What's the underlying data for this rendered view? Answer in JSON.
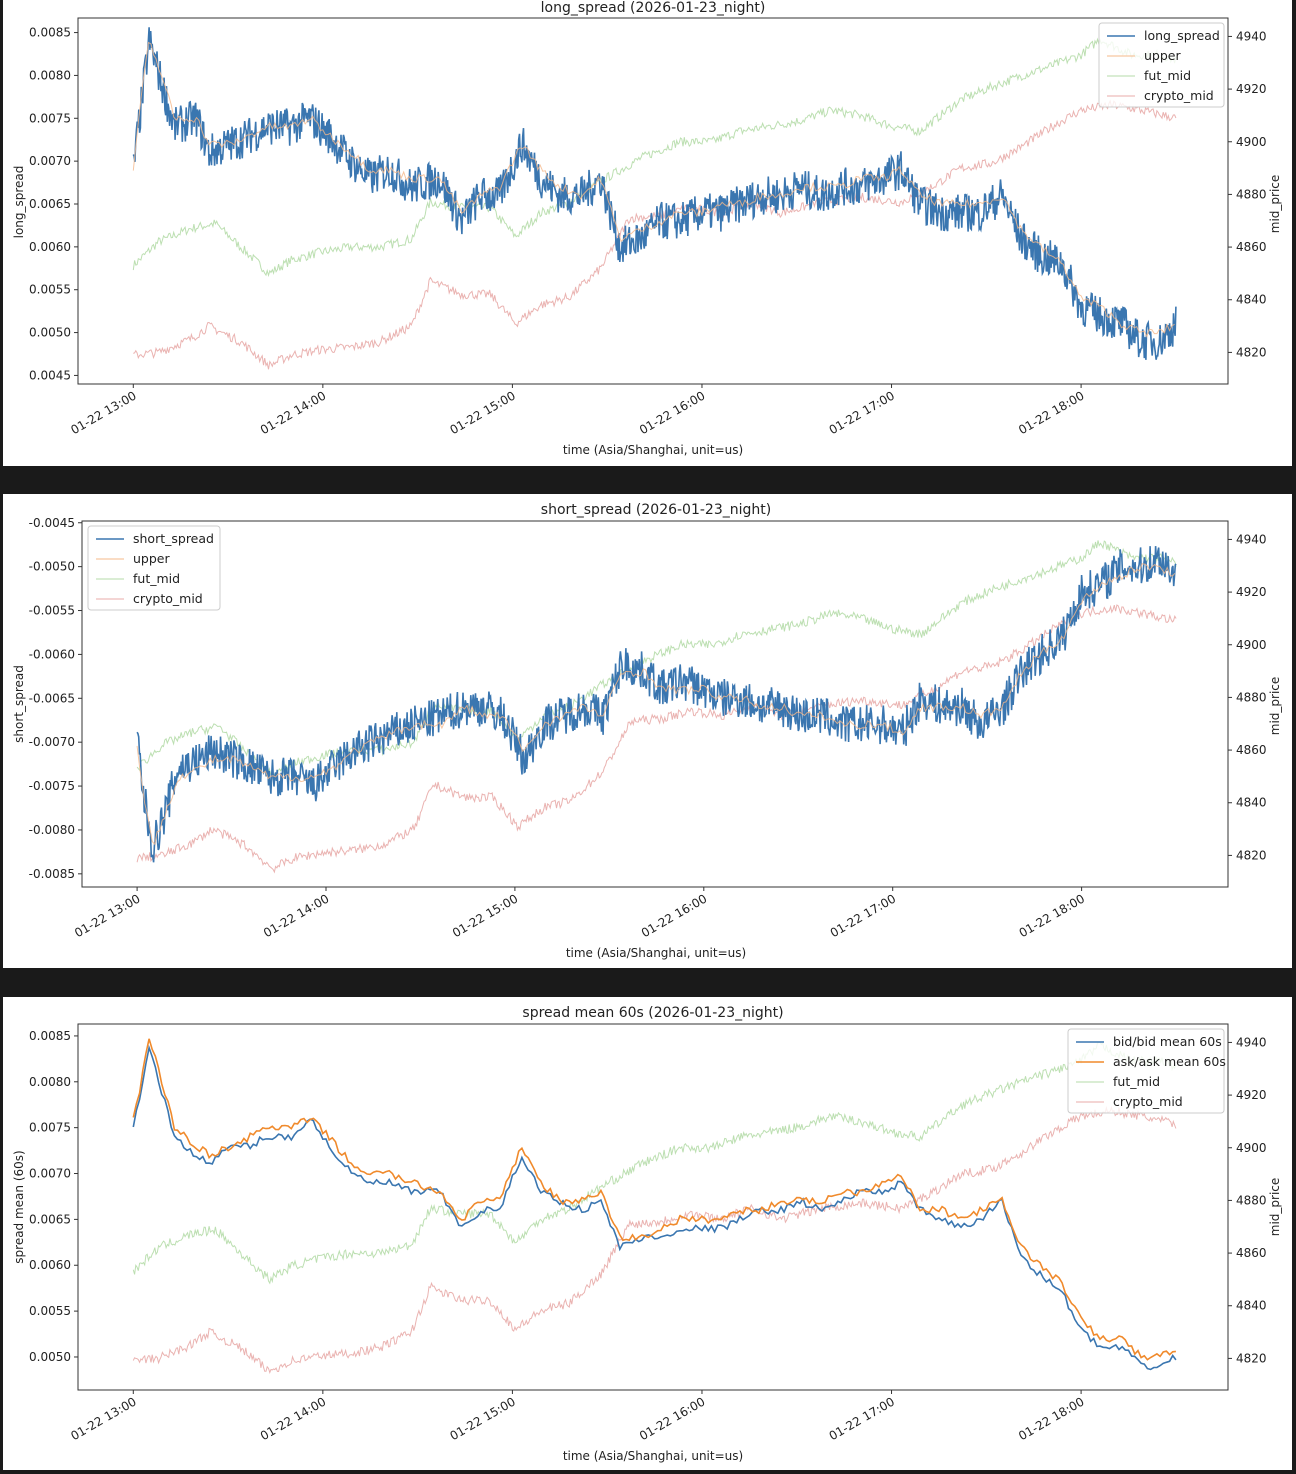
{
  "chart_data": [
    {
      "type": "line",
      "title": "long_spread (2026-01-23_night)",
      "xlabel": "time (Asia/Shanghai, unit=us)",
      "ylabel": "long_spread",
      "y2label": "mid_price",
      "ylim": [
        0.0044,
        0.00867
      ],
      "y2lim": [
        4808,
        4947
      ],
      "yticks": [
        "0.0045",
        "0.0050",
        "0.0055",
        "0.0060",
        "0.0065",
        "0.0070",
        "0.0075",
        "0.0080",
        "0.0085"
      ],
      "y2ticks": [
        "4820",
        "4840",
        "4860",
        "4880",
        "4900",
        "4920",
        "4940"
      ],
      "xticks": [
        "01-22 13:00",
        "01-22 14:00",
        "01-22 15:00",
        "01-22 16:00",
        "01-22 17:00",
        "01-22 18:00"
      ],
      "xlim_minutes_from_1300": [
        -17.5,
        346.5
      ],
      "legend": {
        "position": "upper right",
        "entries": [
          "long_spread",
          "upper",
          "fut_mid",
          "crypto_mid"
        ]
      },
      "x_minutes": [
        0,
        2,
        5,
        9,
        13,
        20,
        24,
        31,
        37,
        42,
        50,
        56,
        62,
        69,
        75,
        81,
        88,
        97,
        104,
        110,
        116,
        123,
        129,
        135,
        142,
        148,
        154,
        161,
        167,
        173,
        180,
        186,
        192,
        199,
        205,
        211,
        218,
        224,
        230,
        237,
        243,
        249,
        256,
        262,
        268,
        275,
        281,
        287,
        294,
        300,
        306,
        313,
        319,
        325,
        330
      ],
      "series": [
        {
          "name": "long_spread",
          "axis": "left",
          "color": "#3a76b0",
          "values": [
            0.0069,
            0.0075,
            0.0084,
            0.0079,
            0.0074,
            0.0075,
            0.0071,
            0.0072,
            0.0073,
            0.0074,
            0.0074,
            0.0075,
            0.0073,
            0.007,
            0.0068,
            0.0069,
            0.0067,
            0.0068,
            0.0063,
            0.0066,
            0.0066,
            0.0072,
            0.0068,
            0.0066,
            0.0066,
            0.0068,
            0.006,
            0.0061,
            0.0063,
            0.0063,
            0.0064,
            0.0064,
            0.0065,
            0.0066,
            0.0066,
            0.0067,
            0.0066,
            0.0067,
            0.0067,
            0.0068,
            0.0069,
            0.0065,
            0.0064,
            0.0064,
            0.0064,
            0.0066,
            0.0061,
            0.0059,
            0.0058,
            0.0053,
            0.0052,
            0.0051,
            0.0049,
            0.0049,
            0.0051
          ]
        },
        {
          "name": "upper",
          "axis": "left",
          "color": "#f5b88a",
          "values": [
            0.0069,
            0.0076,
            0.0084,
            0.008,
            0.0075,
            0.0075,
            0.0072,
            0.0072,
            0.0073,
            0.0074,
            0.0074,
            0.0075,
            0.0073,
            0.0071,
            0.0069,
            0.0069,
            0.0068,
            0.0068,
            0.0064,
            0.0066,
            0.0067,
            0.0072,
            0.0069,
            0.0067,
            0.0066,
            0.0068,
            0.0061,
            0.0062,
            0.0063,
            0.0064,
            0.0064,
            0.0065,
            0.0065,
            0.0066,
            0.0066,
            0.0067,
            0.0067,
            0.0067,
            0.0068,
            0.0068,
            0.0069,
            0.0066,
            0.0065,
            0.0065,
            0.0065,
            0.0066,
            0.0062,
            0.006,
            0.0058,
            0.0054,
            0.0053,
            0.0051,
            0.005,
            0.005,
            0.0051
          ]
        }
      ],
      "mid_series": "shared_mid"
    },
    {
      "type": "line",
      "title": "short_spread (2026-01-23_night)",
      "xlabel": "time (Asia/Shanghai, unit=us)",
      "ylabel": "short_spread",
      "y2label": "mid_price",
      "ylim": [
        -0.00865,
        -0.00448
      ],
      "y2lim": [
        4808,
        4947
      ],
      "yticks": [
        "-0.0085",
        "-0.0080",
        "-0.0075",
        "-0.0070",
        "-0.0065",
        "-0.0060",
        "-0.0055",
        "-0.0050",
        "-0.0045"
      ],
      "y2ticks": [
        "4820",
        "4840",
        "4860",
        "4880",
        "4900",
        "4920",
        "4940"
      ],
      "xticks": [
        "01-22 13:00",
        "01-22 14:00",
        "01-22 15:00",
        "01-22 16:00",
        "01-22 17:00",
        "01-22 18:00"
      ],
      "xlim_minutes_from_1300": [
        -17.5,
        346.5
      ],
      "legend": {
        "position": "upper left",
        "entries": [
          "short_spread",
          "upper",
          "fut_mid",
          "crypto_mid"
        ]
      },
      "x_minutes": [
        0,
        2,
        5,
        9,
        13,
        20,
        24,
        31,
        37,
        42,
        50,
        56,
        62,
        69,
        75,
        81,
        88,
        97,
        104,
        110,
        116,
        123,
        129,
        135,
        142,
        148,
        154,
        161,
        167,
        173,
        180,
        186,
        192,
        199,
        205,
        211,
        218,
        224,
        230,
        237,
        243,
        249,
        256,
        262,
        268,
        275,
        281,
        287,
        294,
        300,
        306,
        313,
        319,
        325,
        330
      ],
      "series": [
        {
          "name": "short_spread",
          "axis": "left",
          "color": "#3a76b0",
          "values": [
            -0.0069,
            -0.0076,
            -0.0082,
            -0.0078,
            -0.0073,
            -0.0072,
            -0.0071,
            -0.0072,
            -0.0073,
            -0.0074,
            -0.0074,
            -0.0075,
            -0.0073,
            -0.0071,
            -0.007,
            -0.0069,
            -0.0068,
            -0.0067,
            -0.0066,
            -0.0066,
            -0.0067,
            -0.0072,
            -0.0068,
            -0.0067,
            -0.0066,
            -0.0067,
            -0.0061,
            -0.0062,
            -0.0064,
            -0.0063,
            -0.0064,
            -0.0065,
            -0.0065,
            -0.0066,
            -0.0066,
            -0.0067,
            -0.0067,
            -0.0068,
            -0.0068,
            -0.0068,
            -0.0069,
            -0.0065,
            -0.0066,
            -0.0066,
            -0.0068,
            -0.0066,
            -0.0062,
            -0.006,
            -0.0058,
            -0.0053,
            -0.0052,
            -0.005,
            -0.005,
            -0.0049,
            -0.0051
          ]
        },
        {
          "name": "upper",
          "axis": "left",
          "color": "#f5b88a",
          "values": [
            -0.007,
            -0.0076,
            -0.0082,
            -0.0078,
            -0.0074,
            -0.0073,
            -0.0072,
            -0.0072,
            -0.0073,
            -0.0074,
            -0.0074,
            -0.0074,
            -0.0073,
            -0.0071,
            -0.007,
            -0.0069,
            -0.0068,
            -0.0068,
            -0.0066,
            -0.0067,
            -0.0067,
            -0.0071,
            -0.0068,
            -0.0067,
            -0.0066,
            -0.0067,
            -0.0062,
            -0.0062,
            -0.0064,
            -0.0064,
            -0.0064,
            -0.0065,
            -0.0065,
            -0.0066,
            -0.0066,
            -0.0067,
            -0.0067,
            -0.0068,
            -0.0068,
            -0.0068,
            -0.0069,
            -0.0066,
            -0.0066,
            -0.0066,
            -0.0067,
            -0.0066,
            -0.0062,
            -0.006,
            -0.0058,
            -0.0054,
            -0.0052,
            -0.0051,
            -0.005,
            -0.005,
            -0.0051
          ]
        }
      ],
      "mid_series": "shared_mid"
    },
    {
      "type": "line",
      "title": "spread mean 60s (2026-01-23_night)",
      "xlabel": "time (Asia/Shanghai, unit=us)",
      "ylabel": "spread mean (60s)",
      "y2label": "mid_price",
      "ylim": [
        0.00464,
        0.00863
      ],
      "y2lim": [
        4808,
        4947
      ],
      "yticks": [
        "0.0050",
        "0.0055",
        "0.0060",
        "0.0065",
        "0.0070",
        "0.0075",
        "0.0080",
        "0.0085"
      ],
      "y2ticks": [
        "4820",
        "4840",
        "4860",
        "4880",
        "4900",
        "4920",
        "4940"
      ],
      "xticks": [
        "01-22 13:00",
        "01-22 14:00",
        "01-22 15:00",
        "01-22 16:00",
        "01-22 17:00",
        "01-22 18:00"
      ],
      "xlim_minutes_from_1300": [
        -17.5,
        346.5
      ],
      "legend": {
        "position": "upper right",
        "entries": [
          "bid/bid mean 60s",
          "ask/ask mean 60s",
          "fut_mid",
          "crypto_mid"
        ]
      },
      "x_minutes": [
        0,
        2,
        5,
        9,
        13,
        20,
        24,
        31,
        37,
        42,
        50,
        56,
        62,
        69,
        75,
        81,
        88,
        97,
        104,
        110,
        116,
        123,
        129,
        135,
        142,
        148,
        154,
        161,
        167,
        173,
        180,
        186,
        192,
        199,
        205,
        211,
        218,
        224,
        230,
        237,
        243,
        249,
        256,
        262,
        268,
        275,
        281,
        287,
        294,
        300,
        306,
        313,
        319,
        325,
        330
      ],
      "series": [
        {
          "name": "bid/bid mean 60s",
          "axis": "left",
          "color": "#3a76b0",
          "values": [
            0.0075,
            0.0078,
            0.0084,
            0.0079,
            0.0074,
            0.0072,
            0.0071,
            0.0073,
            0.0073,
            0.0074,
            0.0074,
            0.0076,
            0.0073,
            0.007,
            0.0069,
            0.0069,
            0.0068,
            0.0068,
            0.0064,
            0.0066,
            0.0066,
            0.0072,
            0.0068,
            0.0067,
            0.0066,
            0.0067,
            0.0062,
            0.0063,
            0.0063,
            0.0064,
            0.0064,
            0.0064,
            0.0065,
            0.0066,
            0.0066,
            0.0067,
            0.0066,
            0.0067,
            0.0068,
            0.0068,
            0.0069,
            0.0066,
            0.0065,
            0.0064,
            0.0065,
            0.0067,
            0.0061,
            0.0059,
            0.0057,
            0.0053,
            0.0051,
            0.0051,
            0.0049,
            0.0049,
            0.005
          ]
        },
        {
          "name": "ask/ask mean 60s",
          "axis": "left",
          "color": "#f08a2c",
          "values": [
            0.0076,
            0.0079,
            0.0085,
            0.008,
            0.0075,
            0.0073,
            0.0072,
            0.0073,
            0.0074,
            0.0075,
            0.0075,
            0.0076,
            0.0074,
            0.0071,
            0.007,
            0.007,
            0.0069,
            0.0068,
            0.0065,
            0.0067,
            0.0067,
            0.0073,
            0.0069,
            0.0067,
            0.0067,
            0.0068,
            0.0063,
            0.0063,
            0.0064,
            0.0065,
            0.0065,
            0.0065,
            0.0066,
            0.0066,
            0.0067,
            0.0067,
            0.0067,
            0.0068,
            0.0068,
            0.0069,
            0.007,
            0.0066,
            0.0066,
            0.0065,
            0.0066,
            0.0067,
            0.0062,
            0.006,
            0.0058,
            0.0054,
            0.0052,
            0.0052,
            0.005,
            0.005,
            0.0051
          ]
        }
      ],
      "mid_series": "shared_mid"
    }
  ],
  "shared_mid": {
    "fut_mid": {
      "color": "#b5dba8",
      "x_minutes": [
        0,
        8,
        18,
        26,
        34,
        43,
        50,
        59,
        69,
        78,
        88,
        94,
        104,
        113,
        121,
        129,
        138,
        148,
        161,
        173,
        183,
        192,
        202,
        211,
        221,
        230,
        240,
        249,
        262,
        272,
        281,
        291,
        300,
        306,
        316,
        325,
        330
      ],
      "values": [
        4853,
        4862,
        4867,
        4869,
        4860,
        4850,
        4855,
        4858,
        4860,
        4860,
        4863,
        4877,
        4875,
        4875,
        4864,
        4873,
        4877,
        4885,
        4894,
        4900,
        4900,
        4904,
        4906,
        4908,
        4912,
        4910,
        4906,
        4904,
        4916,
        4921,
        4925,
        4929,
        4933,
        4939,
        4933,
        4933,
        4931
      ]
    },
    "crypto_mid": {
      "color": "#e8aba8",
      "x_minutes": [
        0,
        8,
        18,
        24,
        34,
        43,
        50,
        59,
        69,
        78,
        88,
        94,
        104,
        113,
        121,
        129,
        138,
        148,
        157,
        167,
        176,
        186,
        196,
        205,
        218,
        230,
        243,
        253,
        262,
        272,
        281,
        291,
        300,
        310,
        319,
        330
      ],
      "values": [
        4819,
        4820,
        4825,
        4830,
        4824,
        4815,
        4819,
        4821,
        4822,
        4824,
        4830,
        4847,
        4842,
        4842,
        4831,
        4838,
        4841,
        4852,
        4871,
        4872,
        4875,
        4873,
        4877,
        4873,
        4877,
        4879,
        4877,
        4883,
        4890,
        4892,
        4898,
        4906,
        4912,
        4914,
        4912,
        4909
      ]
    }
  }
}
